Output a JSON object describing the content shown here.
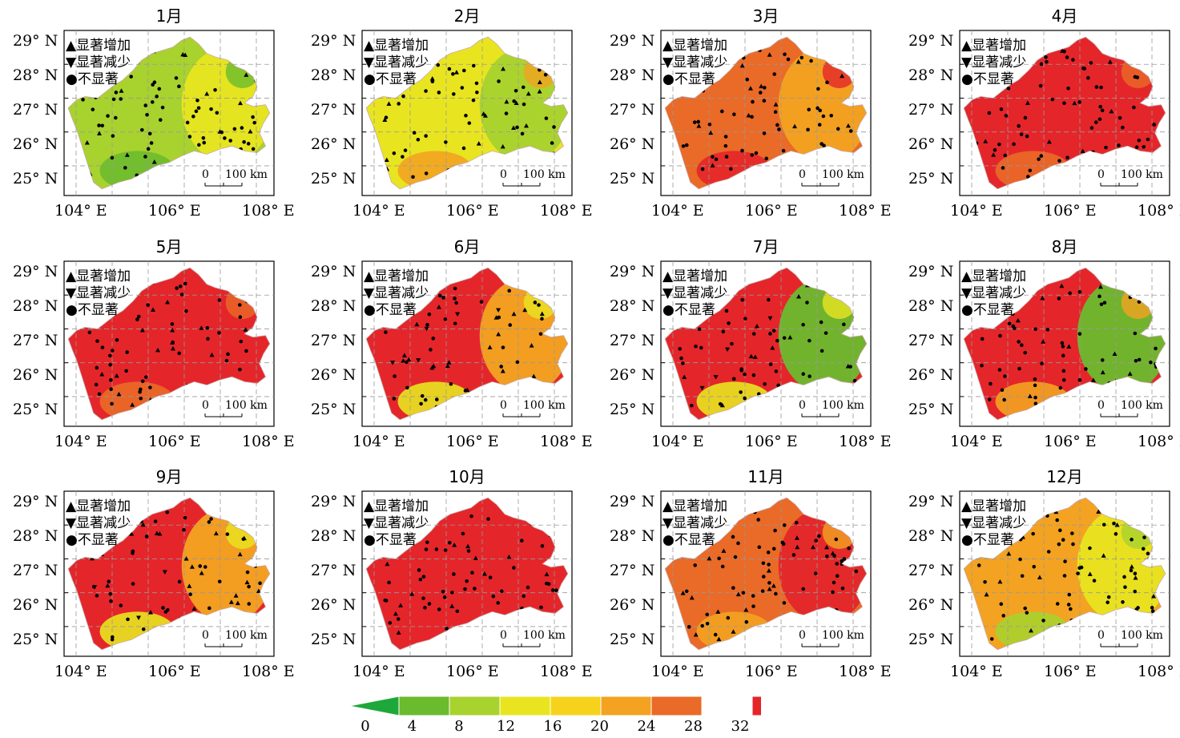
{
  "panels": [
    {
      "title": "1月",
      "dominant": "#a8d22e",
      "secondary": "#e8e520",
      "accent": "#6bbb2e"
    },
    {
      "title": "2月",
      "dominant": "#e8e520",
      "secondary": "#a8d22e",
      "accent": "#f3a321"
    },
    {
      "title": "3月",
      "dominant": "#ea6a27",
      "secondary": "#f3a321",
      "accent": "#e4262a"
    },
    {
      "title": "4月",
      "dominant": "#e4262a",
      "secondary": "#e4262a",
      "accent": "#ea6a27"
    },
    {
      "title": "5月",
      "dominant": "#e4262a",
      "secondary": "#e4262a",
      "accent": "#ea6a27"
    },
    {
      "title": "6月",
      "dominant": "#e4262a",
      "secondary": "#f3a321",
      "accent": "#e8e520"
    },
    {
      "title": "7月",
      "dominant": "#e4262a",
      "secondary": "#6bbb2e",
      "accent": "#e8e520"
    },
    {
      "title": "8月",
      "dominant": "#e4262a",
      "secondary": "#6bbb2e",
      "accent": "#f3a321"
    },
    {
      "title": "9月",
      "dominant": "#e4262a",
      "secondary": "#f3a321",
      "accent": "#e8e520"
    },
    {
      "title": "10月",
      "dominant": "#e4262a",
      "secondary": "#e4262a",
      "accent": "#e4262a"
    },
    {
      "title": "11月",
      "dominant": "#ea6a27",
      "secondary": "#e4262a",
      "accent": "#f3a321"
    },
    {
      "title": "12月",
      "dominant": "#f3a321",
      "secondary": "#e8e520",
      "accent": "#a8d22e"
    }
  ],
  "lat_labels": [
    "29° N",
    "28° N",
    "27° N",
    "26° N",
    "25° N"
  ],
  "lon_labels": [
    "104° E",
    "106° E",
    "108° E"
  ],
  "legend": {
    "increase": "▲显著增加",
    "decrease": "▼显著减少",
    "insignificant": "●不显著"
  },
  "scale": {
    "zero": "0",
    "label": "100 km"
  },
  "colorbar": {
    "ticks": [
      "0",
      "4",
      "8",
      "12",
      "16",
      "20",
      "24",
      "28",
      "32"
    ],
    "colors": [
      "#1fa83a",
      "#6bbb2e",
      "#a8d22e",
      "#e8e520",
      "#f7d21c",
      "#f3a321",
      "#ea6a27",
      "#e4262a"
    ]
  }
}
